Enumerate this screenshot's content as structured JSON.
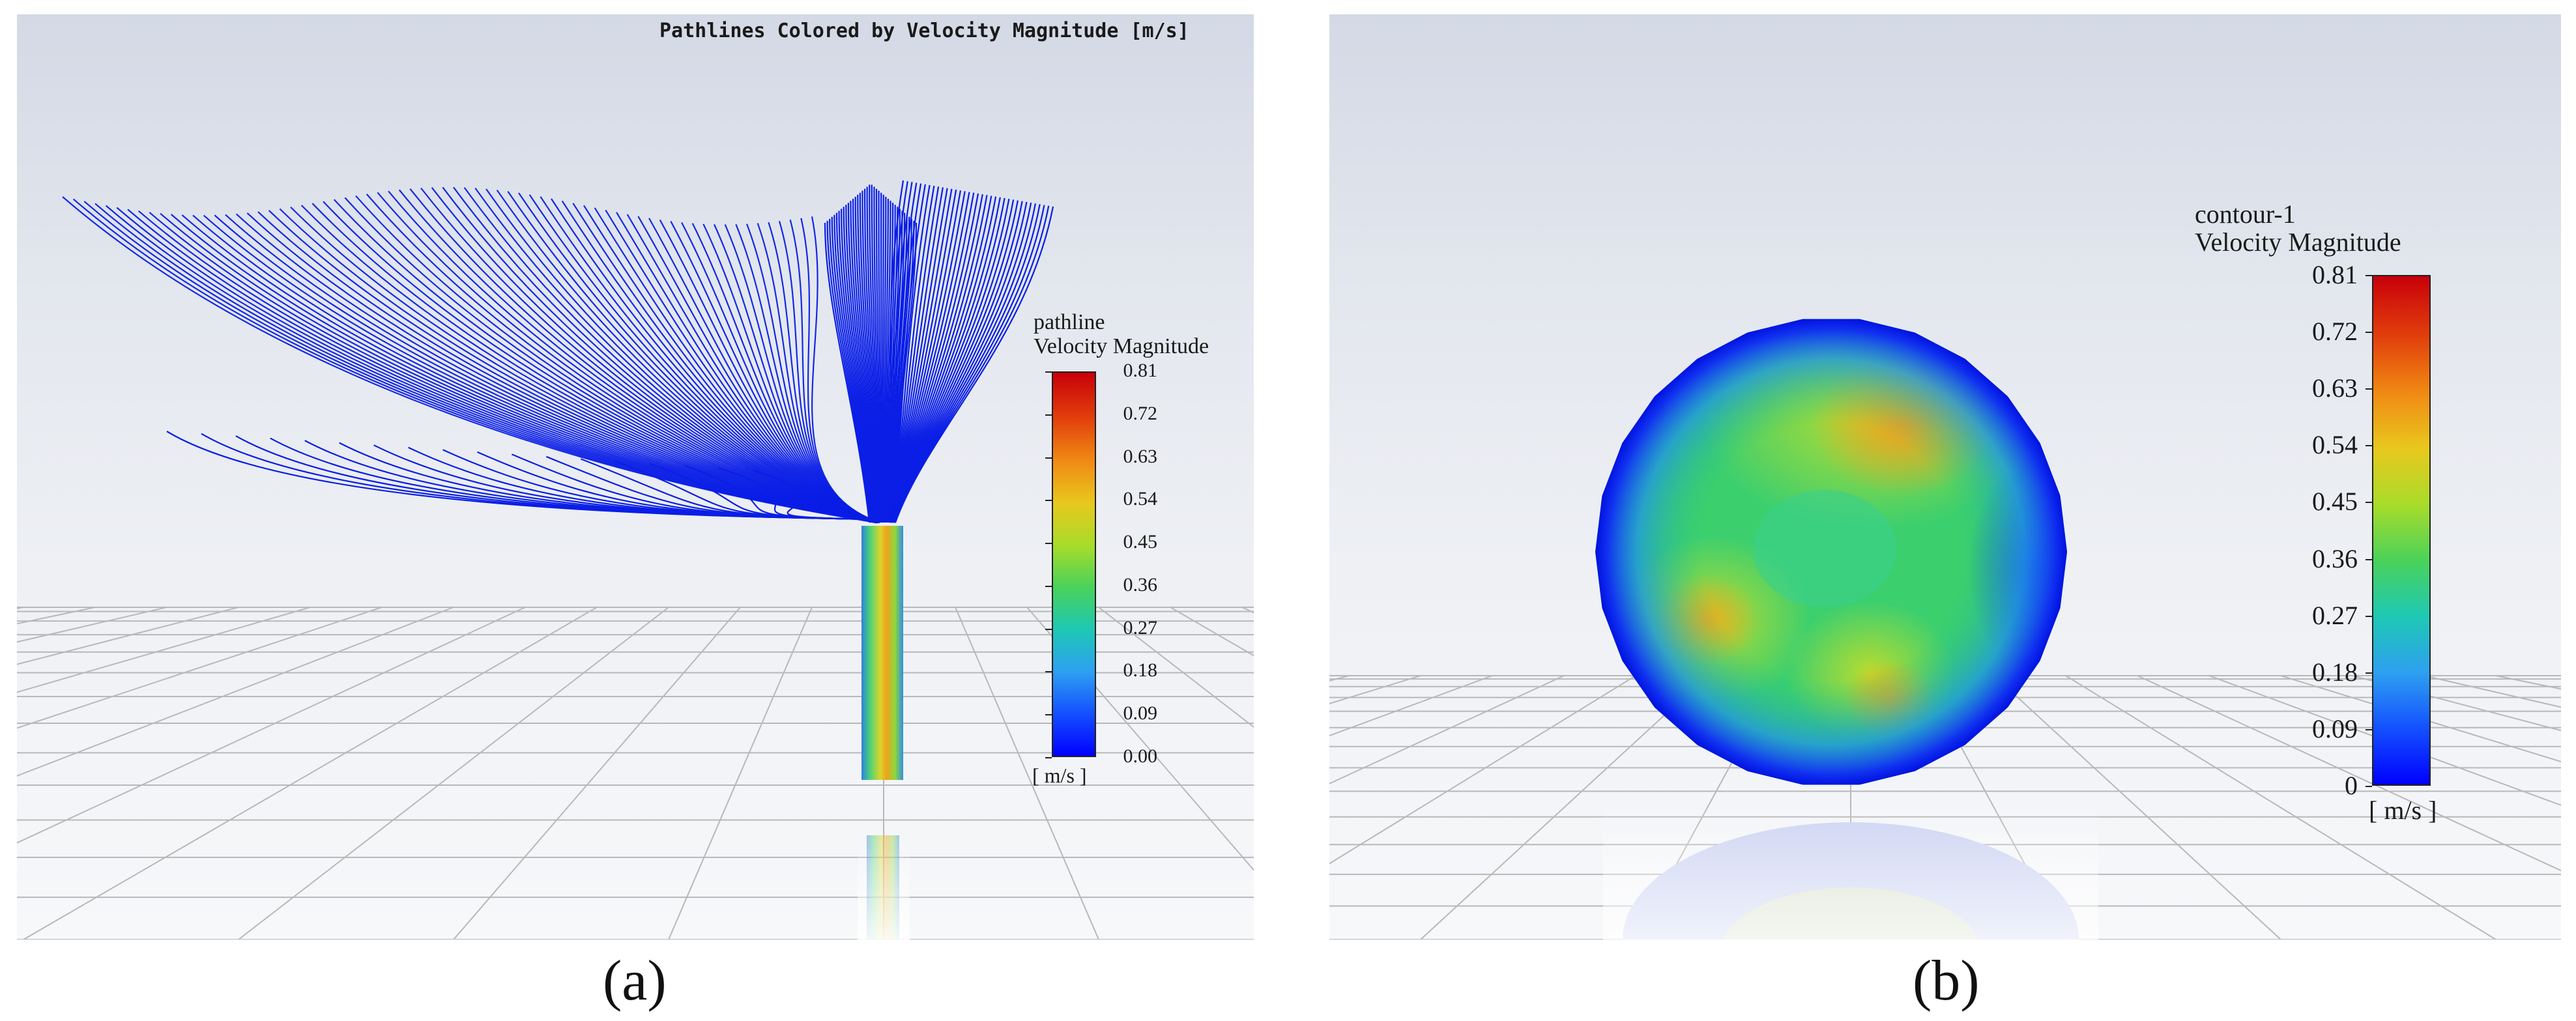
{
  "panel_a": {
    "label": "(a)",
    "title": "Pathlines Colored by Velocity Magnitude [m/s]",
    "legend": {
      "line1": "pathline",
      "line2": "Velocity Magnitude",
      "ticks": [
        "0.81",
        "0.72",
        "0.63",
        "0.54",
        "0.45",
        "0.36",
        "0.27",
        "0.18",
        "0.09",
        "0.00"
      ],
      "unit": "[ m/s ]"
    }
  },
  "panel_b": {
    "label": "(b)",
    "legend": {
      "line1": "contour-1",
      "line2": "Velocity Magnitude",
      "ticks": [
        "0.81",
        "0.72",
        "0.63",
        "0.54",
        "0.45",
        "0.36",
        "0.27",
        "0.18",
        "0.09",
        "0"
      ],
      "unit": "[ m/s ]"
    }
  },
  "colors": {
    "pathline": "#0a1ee6",
    "colormap": [
      "#0000ff",
      "#2ea0f0",
      "#1ec8b4",
      "#4ad25a",
      "#a8dc2a",
      "#e8c81e",
      "#f08a14",
      "#c8000a"
    ]
  }
}
